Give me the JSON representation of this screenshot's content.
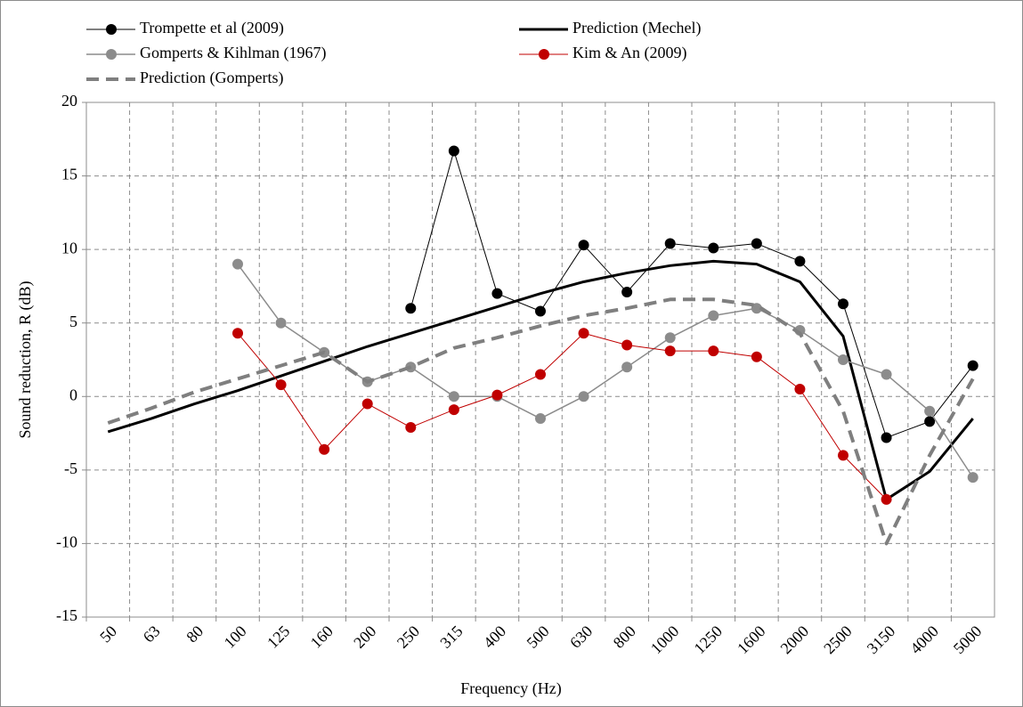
{
  "chart_data": {
    "type": "line",
    "x_label": "Frequency (Hz)",
    "y_label": "Sound reduction, R (dB)",
    "categories": [
      "50",
      "63",
      "80",
      "100",
      "125",
      "160",
      "200",
      "250",
      "315",
      "400",
      "500",
      "630",
      "800",
      "1000",
      "1250",
      "1600",
      "2000",
      "2500",
      "3150",
      "4000",
      "5000"
    ],
    "series": [
      {
        "name": "Trompette et al (2009)",
        "color": "#000000",
        "marker": true,
        "dashed": false,
        "width": 1,
        "values": [
          null,
          null,
          null,
          null,
          null,
          null,
          null,
          6.0,
          16.7,
          7.0,
          5.8,
          10.3,
          7.1,
          10.4,
          10.1,
          10.4,
          9.2,
          6.3,
          -2.8,
          -1.7,
          2.1
        ]
      },
      {
        "name": "Prediction (Mechel)",
        "color": "#000000",
        "marker": false,
        "dashed": false,
        "width": 3,
        "values": [
          -2.4,
          -1.5,
          -0.5,
          0.4,
          1.4,
          2.4,
          3.4,
          4.3,
          5.2,
          6.1,
          7.0,
          7.8,
          8.4,
          8.9,
          9.2,
          9.0,
          7.8,
          4.1,
          -7.0,
          -5.1,
          -1.5
        ]
      },
      {
        "name": "Gomperts & Kihlman (1967)",
        "color": "#8c8c8c",
        "marker": true,
        "dashed": false,
        "width": 1.5,
        "values": [
          null,
          null,
          null,
          9.0,
          5.0,
          3.0,
          1.0,
          2.0,
          0.0,
          0.0,
          -1.5,
          0.0,
          2.0,
          4.0,
          5.5,
          6.0,
          4.5,
          2.5,
          1.5,
          -1.0,
          -5.5
        ]
      },
      {
        "name": "Kim & An (2009)",
        "color": "#c00000",
        "marker": true,
        "dashed": false,
        "width": 1,
        "values": [
          null,
          null,
          null,
          4.3,
          0.8,
          -3.6,
          -0.5,
          -2.1,
          -0.9,
          0.1,
          1.5,
          4.3,
          3.5,
          3.1,
          3.1,
          2.7,
          0.5,
          -4.0,
          -7.0,
          null,
          null
        ]
      },
      {
        "name": "Prediction (Gomperts)",
        "color": "#7f7f7f",
        "marker": false,
        "dashed": true,
        "width": 4,
        "values": [
          -1.8,
          -0.8,
          0.3,
          1.2,
          2.1,
          3.0,
          1.0,
          2.0,
          3.3,
          4.0,
          4.8,
          5.5,
          6.0,
          6.6,
          6.6,
          6.2,
          4.3,
          -1.0,
          -10.0,
          -4.0,
          1.2
        ]
      }
    ],
    "ylim": [
      -15,
      20
    ],
    "yticks": [
      -15,
      -10,
      -5,
      0,
      5,
      10,
      15,
      20
    ],
    "grid": true
  }
}
